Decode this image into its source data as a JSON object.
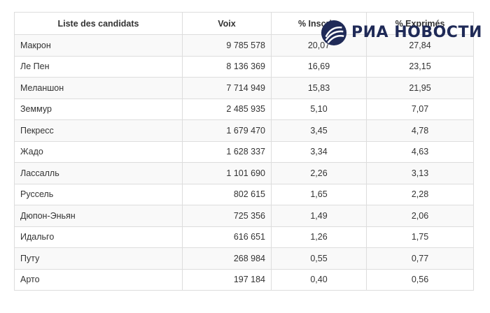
{
  "table": {
    "headers": [
      "Liste des candidats",
      "Voix",
      "% Inscrits",
      "% Exprimés"
    ],
    "rows": [
      {
        "name": "Макрон",
        "votes": "9 785 578",
        "inscrits": "20,07",
        "exprimes": "27,84"
      },
      {
        "name": "Ле Пен",
        "votes": "8 136 369",
        "inscrits": "16,69",
        "exprimes": "23,15"
      },
      {
        "name": "Меланшон",
        "votes": "7 714 949",
        "inscrits": "15,83",
        "exprimes": "21,95"
      },
      {
        "name": "Земмур",
        "votes": "2 485 935",
        "inscrits": "5,10",
        "exprimes": "7,07"
      },
      {
        "name": "Пекресс",
        "votes": "1 679 470",
        "inscrits": "3,45",
        "exprimes": "4,78"
      },
      {
        "name": "Жадо",
        "votes": "1 628 337",
        "inscrits": "3,34",
        "exprimes": "4,63"
      },
      {
        "name": "Лассалль",
        "votes": "1 101 690",
        "inscrits": "2,26",
        "exprimes": "3,13"
      },
      {
        "name": "Руссель",
        "votes": "802 615",
        "inscrits": "1,65",
        "exprimes": "2,28"
      },
      {
        "name": "Дюпон-Эньян",
        "votes": "725 356",
        "inscrits": "1,49",
        "exprimes": "2,06"
      },
      {
        "name": "Идальго",
        "votes": "616 651",
        "inscrits": "1,26",
        "exprimes": "1,75"
      },
      {
        "name": "Путу",
        "votes": "268 984",
        "inscrits": "0,55",
        "exprimes": "0,77"
      },
      {
        "name": "Арто",
        "votes": "197 184",
        "inscrits": "0,40",
        "exprimes": "0,56"
      }
    ]
  },
  "watermark": {
    "text": "РИА НОВОСТИ",
    "color": "#1f2a57",
    "icon": "ria-novosti-logo-icon"
  }
}
